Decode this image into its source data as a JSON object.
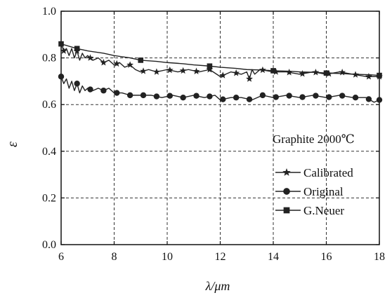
{
  "chart_data": {
    "type": "line",
    "xlabel": "λ/μm",
    "ylabel": "ε",
    "annotation": "Graphite 2000℃",
    "xlim": [
      6,
      18
    ],
    "ylim": [
      0.0,
      1.0
    ],
    "xticks": [
      6,
      8,
      10,
      12,
      14,
      16,
      18
    ],
    "yticks": [
      0.0,
      0.2,
      0.4,
      0.6,
      0.8,
      1.0
    ],
    "grid": "dashed",
    "legend_position": "bottom-right",
    "colors": {
      "series": "#222222",
      "grid": "#333333",
      "axis": "#111111"
    },
    "series": [
      {
        "name": "Calibrated",
        "marker": "star",
        "x": [
          6.0,
          6.1,
          6.2,
          6.3,
          6.4,
          6.5,
          6.6,
          6.7,
          6.8,
          6.9,
          7.0,
          7.2,
          7.4,
          7.6,
          7.8,
          8.0,
          8.2,
          8.4,
          8.6,
          8.8,
          9.0,
          9.3,
          9.6,
          10.0,
          10.4,
          10.8,
          11.2,
          11.6,
          12.0,
          12.4,
          12.8,
          13.0,
          13.1,
          13.2,
          13.3,
          13.5,
          14.0,
          14.5,
          15.0,
          15.5,
          16.0,
          16.5,
          17.0,
          17.5,
          18.0
        ],
        "y": [
          0.86,
          0.83,
          0.84,
          0.81,
          0.84,
          0.8,
          0.83,
          0.79,
          0.82,
          0.8,
          0.81,
          0.79,
          0.8,
          0.78,
          0.79,
          0.77,
          0.78,
          0.76,
          0.77,
          0.75,
          0.74,
          0.75,
          0.74,
          0.75,
          0.74,
          0.75,
          0.74,
          0.75,
          0.72,
          0.74,
          0.73,
          0.74,
          0.71,
          0.75,
          0.73,
          0.75,
          0.74,
          0.74,
          0.73,
          0.74,
          0.73,
          0.74,
          0.73,
          0.72,
          0.72
        ],
        "marker_x": [
          6.1,
          6.6,
          7.1,
          7.6,
          8.1,
          8.6,
          9.1,
          9.6,
          10.1,
          10.6,
          11.1,
          11.6,
          12.1,
          12.6,
          13.1,
          13.6,
          14.1,
          14.6,
          15.1,
          15.6,
          16.1,
          16.6,
          17.1,
          17.6,
          18.0
        ]
      },
      {
        "name": "Original",
        "marker": "circle",
        "x": [
          6.0,
          6.1,
          6.2,
          6.3,
          6.4,
          6.5,
          6.6,
          6.7,
          6.8,
          6.9,
          7.0,
          7.2,
          7.4,
          7.6,
          7.8,
          8.0,
          8.3,
          8.6,
          9.0,
          9.4,
          9.8,
          10.2,
          10.6,
          11.0,
          11.4,
          11.8,
          12.0,
          12.4,
          12.8,
          13.2,
          13.6,
          14.0,
          14.5,
          15.0,
          15.5,
          16.0,
          16.5,
          17.0,
          17.5,
          17.8,
          18.0
        ],
        "y": [
          0.72,
          0.69,
          0.71,
          0.67,
          0.7,
          0.66,
          0.69,
          0.65,
          0.68,
          0.66,
          0.67,
          0.66,
          0.67,
          0.66,
          0.67,
          0.65,
          0.65,
          0.64,
          0.64,
          0.64,
          0.63,
          0.64,
          0.63,
          0.64,
          0.63,
          0.64,
          0.62,
          0.63,
          0.63,
          0.62,
          0.64,
          0.63,
          0.64,
          0.63,
          0.64,
          0.63,
          0.64,
          0.63,
          0.63,
          0.61,
          0.62
        ],
        "marker_x": [
          6.0,
          6.6,
          7.1,
          7.6,
          8.1,
          8.6,
          9.1,
          9.6,
          10.1,
          10.6,
          11.1,
          11.6,
          12.1,
          12.6,
          13.1,
          13.6,
          14.1,
          14.6,
          15.1,
          15.6,
          16.1,
          16.6,
          17.1,
          17.6,
          18.0
        ]
      },
      {
        "name": "G.Neuer",
        "marker": "square",
        "x": [
          6.0,
          6.6,
          7.0,
          7.6,
          8.0,
          8.6,
          9.0,
          9.6,
          10.0,
          10.6,
          11.0,
          11.6,
          12.0,
          12.6,
          13.0,
          13.6,
          14.0,
          14.6,
          15.0,
          15.6,
          16.0,
          16.6,
          17.0,
          17.6,
          18.0
        ],
        "y": [
          0.86,
          0.84,
          0.83,
          0.82,
          0.81,
          0.8,
          0.79,
          0.785,
          0.78,
          0.775,
          0.77,
          0.765,
          0.76,
          0.755,
          0.75,
          0.748,
          0.745,
          0.743,
          0.74,
          0.738,
          0.735,
          0.733,
          0.73,
          0.728,
          0.725
        ],
        "marker_x": [
          6.0,
          6.6,
          9.0,
          11.6,
          14.0,
          16.0,
          18.0
        ]
      }
    ]
  }
}
